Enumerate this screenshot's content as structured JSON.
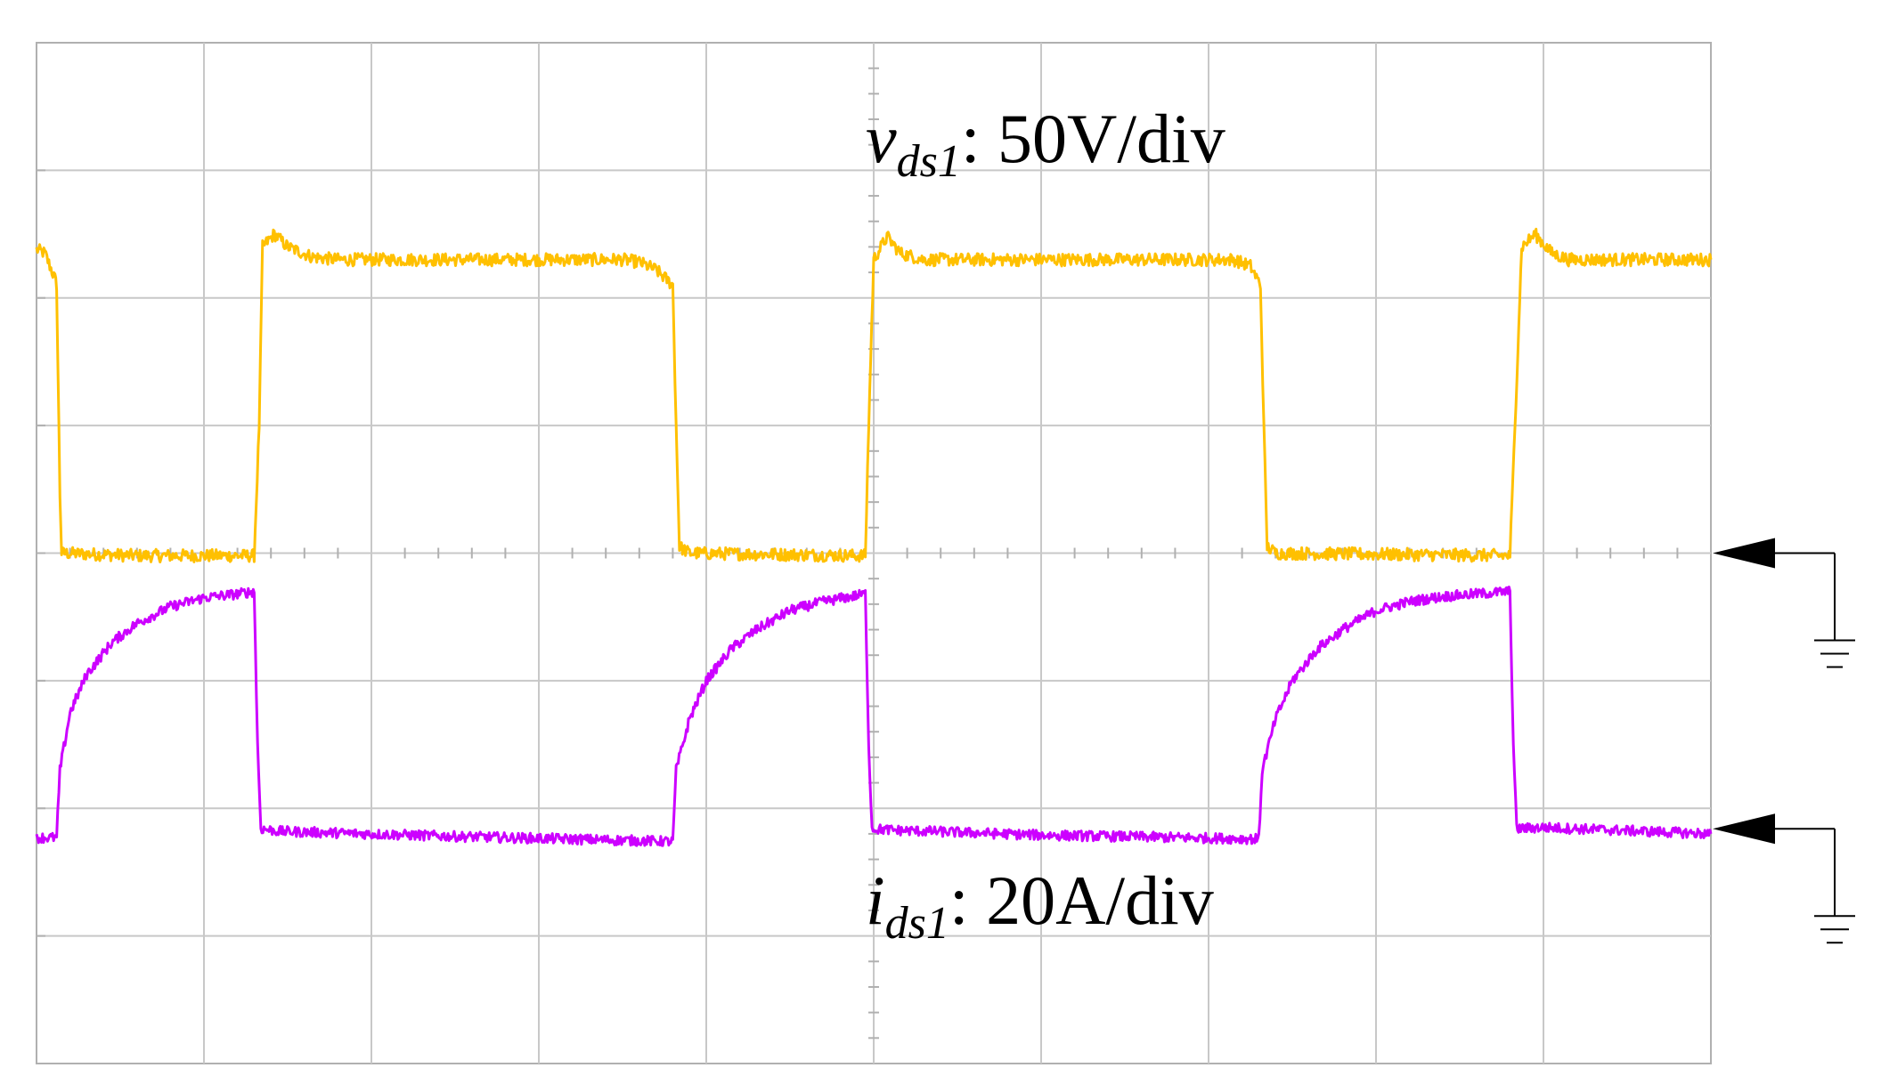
{
  "chart_data": {
    "type": "line",
    "title": "",
    "xlabel": "",
    "ylabel": "",
    "grid": true,
    "divisions": {
      "x": 10,
      "y": 8
    },
    "x_unit": "div",
    "y_unit": "div",
    "xlim": [
      0,
      10
    ],
    "ylim": [
      0,
      8
    ],
    "annotations": [
      {
        "text_var": "v",
        "text_sub": "ds1",
        "text_rest": ": 50V/div"
      },
      {
        "text_var": "i",
        "text_sub": "ds1",
        "text_rest": ": 20A/div"
      }
    ],
    "ground_markers": [
      {
        "level_div": 4.0
      },
      {
        "level_div": 1.84
      }
    ],
    "series": [
      {
        "color": "#FFC000",
        "baseline_div": 4.0,
        "scale": "50V/div",
        "points": [
          [
            0.0,
            6.38
          ],
          [
            0.05,
            6.35
          ],
          [
            0.11,
            6.15
          ],
          [
            0.12,
            6.1
          ],
          [
            0.14,
            4.45
          ],
          [
            0.15,
            4.0
          ],
          [
            0.6,
            3.98
          ],
          [
            1.3,
            3.98
          ],
          [
            1.33,
            5.0
          ],
          [
            1.35,
            6.4
          ],
          [
            1.42,
            6.5
          ],
          [
            1.5,
            6.4
          ],
          [
            1.65,
            6.32
          ],
          [
            1.8,
            6.3
          ],
          [
            3.5,
            6.3
          ],
          [
            3.6,
            6.28
          ],
          [
            3.7,
            6.22
          ],
          [
            3.8,
            6.1
          ],
          [
            3.82,
            5.0
          ],
          [
            3.84,
            4.05
          ],
          [
            3.9,
            4.0
          ],
          [
            4.95,
            3.98
          ],
          [
            4.97,
            5.0
          ],
          [
            5.0,
            6.3
          ],
          [
            5.08,
            6.48
          ],
          [
            5.16,
            6.35
          ],
          [
            5.3,
            6.3
          ],
          [
            7.15,
            6.3
          ],
          [
            7.25,
            6.25
          ],
          [
            7.31,
            6.1
          ],
          [
            7.33,
            5.0
          ],
          [
            7.35,
            4.05
          ],
          [
            7.4,
            4.0
          ],
          [
            8.8,
            3.98
          ],
          [
            8.83,
            5.0
          ],
          [
            8.87,
            6.4
          ],
          [
            8.95,
            6.5
          ],
          [
            9.05,
            6.35
          ],
          [
            9.15,
            6.3
          ],
          [
            10.0,
            6.3
          ]
        ]
      },
      {
        "color": "#CC00FF",
        "baseline_div": 1.84,
        "scale": "20A/div",
        "points": [
          [
            0.0,
            1.77
          ],
          [
            0.12,
            1.77
          ],
          [
            0.14,
            2.3
          ],
          [
            0.2,
            2.75
          ],
          [
            0.3,
            3.05
          ],
          [
            0.45,
            3.3
          ],
          [
            0.6,
            3.45
          ],
          [
            0.8,
            3.58
          ],
          [
            1.0,
            3.65
          ],
          [
            1.2,
            3.68
          ],
          [
            1.3,
            3.7
          ],
          [
            1.32,
            2.5
          ],
          [
            1.34,
            1.84
          ],
          [
            1.45,
            1.82
          ],
          [
            2.5,
            1.78
          ],
          [
            3.8,
            1.74
          ],
          [
            3.82,
            2.3
          ],
          [
            3.9,
            2.7
          ],
          [
            4.0,
            3.0
          ],
          [
            4.15,
            3.25
          ],
          [
            4.3,
            3.4
          ],
          [
            4.5,
            3.55
          ],
          [
            4.7,
            3.62
          ],
          [
            4.95,
            3.68
          ],
          [
            4.97,
            2.5
          ],
          [
            4.99,
            1.84
          ],
          [
            5.1,
            1.83
          ],
          [
            6.0,
            1.79
          ],
          [
            7.3,
            1.76
          ],
          [
            7.32,
            2.3
          ],
          [
            7.4,
            2.7
          ],
          [
            7.5,
            3.0
          ],
          [
            7.65,
            3.25
          ],
          [
            7.8,
            3.4
          ],
          [
            8.0,
            3.55
          ],
          [
            8.2,
            3.62
          ],
          [
            8.4,
            3.66
          ],
          [
            8.8,
            3.7
          ],
          [
            8.82,
            2.5
          ],
          [
            8.84,
            1.84
          ],
          [
            9.0,
            1.85
          ],
          [
            10.0,
            1.8
          ]
        ]
      }
    ]
  }
}
